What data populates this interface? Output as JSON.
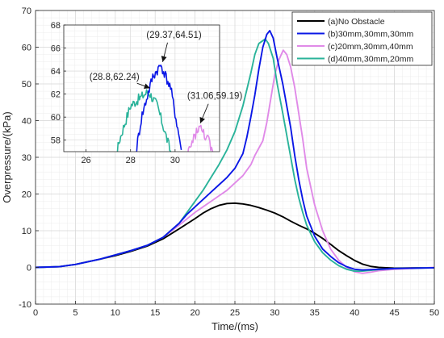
{
  "chart_data": {
    "type": "line",
    "title": "",
    "xlabel": "Time/(ms)",
    "ylabel": "Overpressure/(kPa)",
    "xlim": [
      0,
      50
    ],
    "ylim": [
      -10,
      70
    ],
    "xticks": [
      0,
      5,
      10,
      15,
      20,
      25,
      30,
      35,
      40,
      45,
      50
    ],
    "yticks": [
      -10,
      0,
      10,
      20,
      30,
      40,
      50,
      60,
      70
    ],
    "grid": true,
    "legend_position": "top-right",
    "series": [
      {
        "name": "(a)No Obstacle",
        "color": "#000000",
        "x": [
          0,
          3,
          5,
          8,
          10,
          12,
          14,
          16,
          18,
          20,
          21,
          22,
          23,
          24,
          25,
          26,
          27,
          28,
          29,
          30,
          31,
          32,
          33,
          34,
          35,
          36,
          37,
          38,
          39,
          40,
          41,
          42,
          43,
          44,
          45,
          50
        ],
        "y": [
          0,
          0.2,
          0.8,
          2.2,
          3.2,
          4.4,
          5.8,
          7.8,
          10.5,
          13.3,
          14.8,
          16.0,
          16.9,
          17.4,
          17.5,
          17.3,
          16.9,
          16.3,
          15.6,
          14.8,
          13.8,
          12.6,
          11.5,
          10.5,
          9.3,
          7.9,
          6.3,
          4.6,
          3.2,
          1.9,
          0.9,
          0.3,
          0.0,
          -0.1,
          -0.2,
          -0.1
        ]
      },
      {
        "name": "(b)30mm,30mm,30mm",
        "color": "#0a17e6",
        "x": [
          0,
          3,
          5,
          8,
          10,
          12,
          14,
          16,
          18,
          19,
          20,
          21,
          22,
          23,
          24,
          25,
          26,
          26.5,
          27,
          27.5,
          28,
          28.5,
          29,
          29.37,
          29.8,
          30.3,
          31,
          31.5,
          32,
          32.5,
          33,
          33.5,
          34,
          35,
          36,
          37,
          38,
          39,
          40,
          41,
          43,
          45,
          50
        ],
        "y": [
          0,
          0.2,
          0.8,
          2.2,
          3.4,
          4.6,
          6.0,
          8.2,
          12.0,
          14.5,
          16.5,
          18.5,
          20.5,
          22.5,
          24.5,
          27.0,
          31.0,
          35.5,
          41.0,
          47.0,
          54.0,
          60.0,
          63.5,
          64.51,
          62.5,
          57.0,
          50.0,
          44.0,
          38.0,
          30.5,
          24.0,
          18.5,
          14.0,
          8.5,
          5.0,
          3.0,
          1.3,
          0.2,
          -0.5,
          -0.7,
          -0.5,
          -0.3,
          -0.1
        ]
      },
      {
        "name": "(c)20mm,30mm,40mm",
        "color": "#e08ae8",
        "x": [
          0,
          3,
          5,
          8,
          10,
          12,
          14,
          16,
          18,
          20,
          21,
          22,
          23,
          24,
          25,
          26,
          27,
          27.5,
          28,
          28.5,
          29,
          29.5,
          30,
          30.5,
          31.06,
          31.5,
          32,
          32.5,
          33,
          33.5,
          34,
          35,
          36,
          37,
          38,
          39,
          40,
          41,
          42,
          43,
          45,
          48,
          50
        ],
        "y": [
          0,
          0.2,
          0.8,
          2.2,
          3.4,
          4.6,
          6.0,
          8.2,
          11.5,
          15.0,
          16.5,
          18.0,
          19.5,
          21.0,
          23.0,
          25.0,
          28.0,
          30.5,
          32.5,
          34.5,
          39.5,
          46.0,
          52.5,
          56.5,
          59.19,
          58.0,
          54.5,
          49.0,
          42.0,
          35.0,
          27.0,
          17.0,
          10.0,
          5.0,
          2.0,
          0.0,
          -1.2,
          -1.6,
          -1.3,
          -0.9,
          -0.5,
          -0.2,
          0.0
        ]
      },
      {
        "name": "(d)40mm,30mm,20mm",
        "color": "#2ab39a",
        "x": [
          0,
          3,
          5,
          8,
          10,
          12,
          14,
          16,
          18,
          19,
          20,
          21,
          22,
          23,
          24,
          25,
          26,
          27,
          27.5,
          28,
          28.8,
          29.2,
          29.8,
          30.3,
          31,
          31.5,
          32,
          32.5,
          33,
          33.5,
          34,
          35,
          36,
          37,
          38,
          39,
          40,
          41,
          43,
          45,
          50
        ],
        "y": [
          0,
          0.2,
          0.8,
          2.2,
          3.4,
          4.6,
          6.0,
          8.2,
          12.0,
          15.0,
          18.0,
          21.0,
          24.5,
          28.0,
          32.0,
          37.0,
          44.0,
          53.0,
          58.0,
          61.0,
          62.24,
          61.0,
          57.0,
          50.0,
          42.0,
          36.0,
          30.0,
          24.0,
          19.0,
          15.0,
          11.5,
          7.0,
          4.0,
          2.0,
          0.5,
          -0.5,
          -1.0,
          -1.0,
          -0.6,
          -0.3,
          -0.1
        ]
      }
    ],
    "inset": {
      "xlim": [
        25,
        32
      ],
      "ylim": [
        57,
        68
      ],
      "xticks": [
        26,
        28,
        30
      ],
      "yticks": [
        58,
        60,
        62,
        64,
        66,
        68
      ],
      "grid": true,
      "annotations": [
        {
          "text": "(29.37,64.51)",
          "x": 29.37,
          "y": 64.51
        },
        {
          "text": "(28.8,62.24)",
          "x": 28.8,
          "y": 62.24
        },
        {
          "text": "(31.06,59.19)",
          "x": 31.06,
          "y": 59.19
        }
      ]
    }
  }
}
